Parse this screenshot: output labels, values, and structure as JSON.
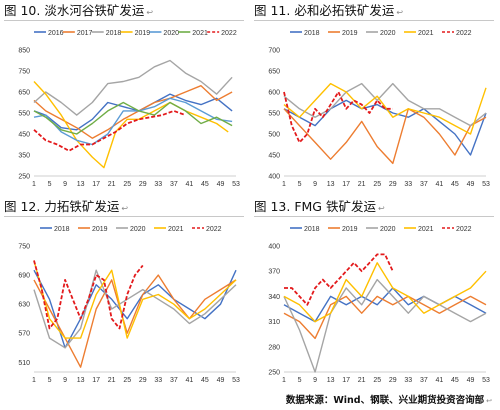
{
  "source_text": "数据来源：Wind、钢联、兴业期货投资咨询部",
  "source_mark": "↩",
  "chart_data": [
    {
      "title": "图 10. 淡水河谷铁矿发运",
      "type": "line",
      "ylim": [
        250,
        850
      ],
      "yticks": [
        250,
        350,
        450,
        550,
        650,
        750,
        850
      ],
      "xticks": [
        1,
        5,
        9,
        13,
        17,
        21,
        25,
        29,
        33,
        37,
        41,
        45,
        49,
        53
      ],
      "legend": "top",
      "series": [
        {
          "name": "2016",
          "color": "#4472c4",
          "dash": false,
          "x": [
            1,
            4,
            8,
            12,
            16,
            20,
            24,
            28,
            32,
            36,
            40,
            44,
            48,
            52
          ],
          "y": [
            560,
            540,
            480,
            470,
            520,
            600,
            580,
            560,
            600,
            640,
            610,
            590,
            620,
            560
          ]
        },
        {
          "name": "2017",
          "color": "#ed7d31",
          "dash": false,
          "x": [
            1,
            4,
            8,
            12,
            16,
            20,
            24,
            28,
            32,
            36,
            40,
            44,
            48,
            52
          ],
          "y": [
            610,
            560,
            520,
            480,
            430,
            470,
            520,
            560,
            600,
            620,
            650,
            680,
            610,
            650
          ]
        },
        {
          "name": "2018",
          "color": "#a5a5a5",
          "dash": false,
          "x": [
            1,
            4,
            8,
            12,
            16,
            20,
            24,
            28,
            32,
            36,
            40,
            44,
            48,
            52
          ],
          "y": [
            600,
            650,
            600,
            540,
            600,
            690,
            700,
            720,
            770,
            800,
            740,
            700,
            640,
            720
          ]
        },
        {
          "name": "2019",
          "color": "#ffc000",
          "dash": false,
          "x": [
            1,
            4,
            8,
            12,
            16,
            19,
            22,
            25,
            28,
            32,
            36,
            40,
            44,
            48,
            51
          ],
          "y": [
            700,
            640,
            540,
            420,
            340,
            290,
            460,
            520,
            520,
            560,
            600,
            560,
            530,
            500,
            460
          ]
        },
        {
          "name": "2020",
          "color": "#5b9bd5",
          "dash": false,
          "x": [
            1,
            4,
            8,
            12,
            16,
            20,
            24,
            28,
            32,
            36,
            40,
            44,
            48,
            52
          ],
          "y": [
            530,
            540,
            460,
            420,
            400,
            450,
            560,
            560,
            580,
            620,
            600,
            560,
            520,
            510
          ]
        },
        {
          "name": "2021",
          "color": "#70ad47",
          "dash": false,
          "x": [
            1,
            4,
            8,
            12,
            16,
            20,
            24,
            28,
            32,
            36,
            40,
            44,
            48,
            52
          ],
          "y": [
            560,
            530,
            470,
            450,
            500,
            560,
            600,
            560,
            540,
            600,
            560,
            500,
            530,
            490
          ]
        },
        {
          "name": "2022",
          "color": "#e31a1c",
          "dash": true,
          "x": [
            1,
            4,
            7,
            10,
            13,
            16,
            19,
            22,
            25,
            28,
            31,
            34,
            37,
            40
          ],
          "y": [
            470,
            420,
            400,
            370,
            400,
            400,
            430,
            460,
            500,
            520,
            530,
            540,
            560,
            540
          ]
        }
      ]
    },
    {
      "title": "图 11. 必和必拓铁矿发运",
      "type": "line",
      "ylim": [
        400,
        700
      ],
      "yticks": [
        400,
        450,
        500,
        550,
        600,
        650,
        700
      ],
      "xticks": [
        1,
        5,
        9,
        13,
        17,
        21,
        25,
        29,
        33,
        37,
        41,
        45,
        49,
        53
      ],
      "legend": "top",
      "series": [
        {
          "name": "2018",
          "color": "#4472c4",
          "dash": false,
          "x": [
            1,
            5,
            9,
            13,
            17,
            21,
            25,
            29,
            33,
            37,
            41,
            45,
            49,
            53
          ],
          "y": [
            560,
            540,
            520,
            560,
            580,
            560,
            570,
            550,
            540,
            560,
            530,
            500,
            450,
            550
          ]
        },
        {
          "name": "2019",
          "color": "#ed7d31",
          "dash": false,
          "x": [
            1,
            5,
            9,
            13,
            17,
            21,
            25,
            29,
            33,
            37,
            41,
            45,
            49,
            53
          ],
          "y": [
            560,
            520,
            480,
            440,
            480,
            530,
            470,
            430,
            560,
            540,
            500,
            450,
            520,
            540
          ]
        },
        {
          "name": "2020",
          "color": "#a5a5a5",
          "dash": false,
          "x": [
            1,
            5,
            9,
            13,
            17,
            21,
            25,
            29,
            33,
            37,
            41,
            45,
            49,
            53
          ],
          "y": [
            590,
            560,
            540,
            560,
            600,
            620,
            580,
            620,
            580,
            560,
            560,
            540,
            520,
            550
          ]
        },
        {
          "name": "2021",
          "color": "#ffc000",
          "dash": false,
          "x": [
            1,
            5,
            9,
            13,
            17,
            21,
            25,
            29,
            33,
            37,
            41,
            45,
            49,
            53
          ],
          "y": [
            570,
            540,
            580,
            620,
            600,
            560,
            590,
            540,
            560,
            550,
            540,
            520,
            500,
            610
          ]
        },
        {
          "name": "2022",
          "color": "#e31a1c",
          "dash": true,
          "x": [
            1,
            3,
            5,
            7,
            9,
            11,
            13,
            15,
            17,
            19,
            21,
            23,
            25,
            27,
            29
          ],
          "y": [
            600,
            520,
            480,
            500,
            560,
            540,
            570,
            600,
            560,
            580,
            570,
            550,
            580,
            560,
            560
          ]
        }
      ]
    },
    {
      "title": "图 12. 力拓铁矿发运",
      "type": "line",
      "ylim": [
        490,
        750
      ],
      "yticks": [
        510,
        570,
        630,
        690,
        750
      ],
      "xticks": [
        1,
        5,
        9,
        13,
        17,
        21,
        25,
        29,
        33,
        37,
        41,
        45,
        49,
        53
      ],
      "legend": "top",
      "series": [
        {
          "name": "2018",
          "color": "#4472c4",
          "dash": false,
          "x": [
            1,
            5,
            9,
            13,
            17,
            21,
            25,
            29,
            33,
            37,
            41,
            45,
            49,
            53
          ],
          "y": [
            700,
            640,
            540,
            600,
            670,
            640,
            600,
            650,
            670,
            640,
            620,
            600,
            630,
            700
          ]
        },
        {
          "name": "2019",
          "color": "#ed7d31",
          "dash": false,
          "x": [
            1,
            5,
            9,
            13,
            17,
            21,
            25,
            29,
            33,
            37,
            41,
            45,
            49,
            53
          ],
          "y": [
            680,
            620,
            560,
            500,
            620,
            680,
            570,
            650,
            690,
            640,
            600,
            640,
            660,
            680
          ]
        },
        {
          "name": "2020",
          "color": "#a5a5a5",
          "dash": false,
          "x": [
            1,
            5,
            9,
            13,
            17,
            21,
            25,
            29,
            33,
            37,
            41,
            45,
            49,
            53
          ],
          "y": [
            660,
            560,
            540,
            580,
            700,
            620,
            640,
            660,
            640,
            620,
            590,
            610,
            640,
            670
          ]
        },
        {
          "name": "2021",
          "color": "#ffc000",
          "dash": false,
          "x": [
            1,
            5,
            9,
            13,
            17,
            21,
            25,
            29,
            33,
            37,
            41,
            45,
            49,
            53
          ],
          "y": [
            720,
            600,
            560,
            560,
            650,
            700,
            560,
            640,
            650,
            630,
            600,
            620,
            650,
            680
          ]
        },
        {
          "name": "2022",
          "color": "#e31a1c",
          "dash": true,
          "x": [
            1,
            3,
            5,
            7,
            9,
            11,
            13,
            15,
            17,
            19,
            21,
            23,
            25,
            27,
            29
          ],
          "y": [
            720,
            660,
            580,
            600,
            680,
            640,
            600,
            640,
            690,
            680,
            600,
            580,
            650,
            690,
            710
          ]
        }
      ]
    },
    {
      "title": "图 13. FMG 铁矿发运",
      "type": "line",
      "ylim": [
        250,
        400
      ],
      "yticks": [
        250,
        280,
        310,
        340,
        370,
        400
      ],
      "xticks": [
        1,
        5,
        9,
        13,
        17,
        21,
        25,
        29,
        33,
        37,
        41,
        45,
        49,
        53
      ],
      "legend": "top",
      "series": [
        {
          "name": "2018",
          "color": "#4472c4",
          "dash": false,
          "x": [
            1,
            5,
            9,
            13,
            17,
            21,
            25,
            29,
            33,
            37,
            41,
            45,
            49,
            53
          ],
          "y": [
            330,
            320,
            310,
            340,
            330,
            340,
            330,
            350,
            330,
            340,
            330,
            340,
            330,
            320
          ]
        },
        {
          "name": "2019",
          "color": "#ed7d31",
          "dash": false,
          "x": [
            1,
            5,
            9,
            13,
            17,
            21,
            25,
            29,
            33,
            37,
            41,
            45,
            49,
            53
          ],
          "y": [
            320,
            310,
            290,
            330,
            340,
            320,
            340,
            330,
            340,
            330,
            320,
            330,
            340,
            330
          ]
        },
        {
          "name": "2020",
          "color": "#a5a5a5",
          "dash": false,
          "x": [
            1,
            5,
            9,
            13,
            17,
            21,
            25,
            29,
            33,
            37,
            41,
            45,
            49,
            53
          ],
          "y": [
            340,
            300,
            250,
            320,
            350,
            330,
            360,
            340,
            320,
            340,
            330,
            320,
            310,
            320
          ]
        },
        {
          "name": "2021",
          "color": "#ffc000",
          "dash": false,
          "x": [
            1,
            5,
            9,
            13,
            17,
            21,
            25,
            29,
            33,
            37,
            41,
            45,
            49,
            53
          ],
          "y": [
            340,
            330,
            310,
            320,
            360,
            340,
            380,
            350,
            340,
            320,
            330,
            340,
            350,
            370
          ]
        },
        {
          "name": "2022",
          "color": "#e31a1c",
          "dash": true,
          "x": [
            1,
            3,
            5,
            7,
            9,
            11,
            13,
            15,
            17,
            19,
            21,
            23,
            25,
            27,
            29
          ],
          "y": [
            350,
            350,
            340,
            330,
            350,
            360,
            350,
            360,
            370,
            380,
            370,
            380,
            390,
            390,
            370
          ]
        }
      ]
    }
  ]
}
